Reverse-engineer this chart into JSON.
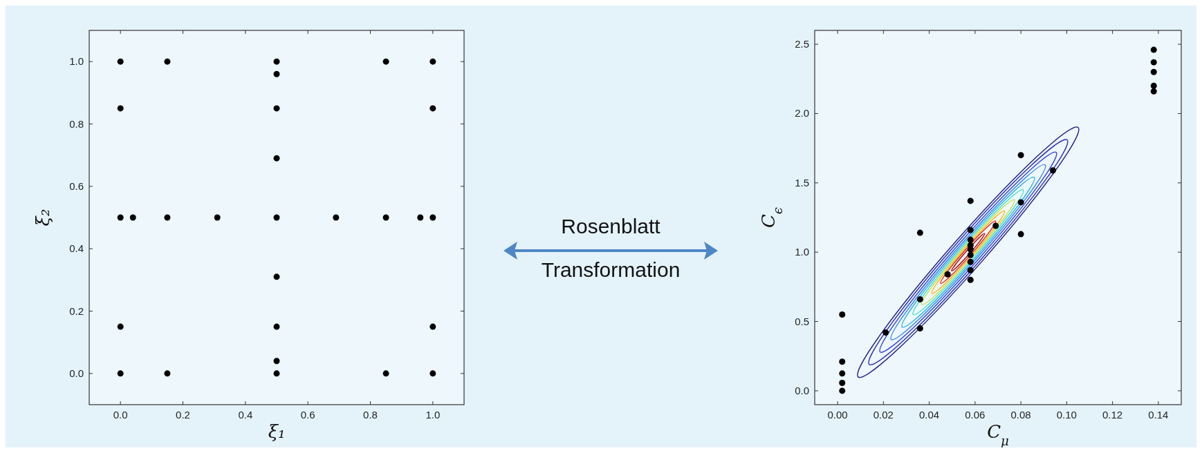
{
  "chart_data": [
    {
      "type": "scatter",
      "xlabel": "ξ₁",
      "ylabel": "ξ₂",
      "marker": "circle",
      "color": "#000000",
      "xlim": [
        -0.1,
        1.1
      ],
      "ylim": [
        -0.1,
        1.1
      ],
      "xticks": [
        {
          "value": 0,
          "label": "0.0"
        },
        {
          "value": 0.2,
          "label": "0.2"
        },
        {
          "value": 0.4,
          "label": "0.4"
        },
        {
          "value": 0.6,
          "label": "0.6"
        },
        {
          "value": 0.8,
          "label": "0.8"
        },
        {
          "value": 1,
          "label": "1.0"
        }
      ],
      "yticks": [
        {
          "value": 0,
          "label": "0.0"
        },
        {
          "value": 0.2,
          "label": "0.2"
        },
        {
          "value": 0.4,
          "label": "0.4"
        },
        {
          "value": 0.6,
          "label": "0.6"
        },
        {
          "value": 0.8,
          "label": "0.8"
        },
        {
          "value": 1,
          "label": "1.0"
        }
      ],
      "x": [
        0,
        0.15,
        0.5,
        0.85,
        1,
        0.5,
        0,
        0.5,
        1,
        0.5,
        0,
        0.04,
        0.15,
        0.31,
        0.5,
        0.69,
        0.85,
        0.96,
        1,
        0.5,
        0,
        0.5,
        1,
        0.5,
        0,
        0.15,
        0.5,
        0.85,
        1
      ],
      "values": [
        1,
        1,
        1,
        1,
        1,
        0.96,
        0.85,
        0.85,
        0.85,
        0.69,
        0.5,
        0.5,
        0.5,
        0.5,
        0.5,
        0.5,
        0.5,
        0.5,
        0.5,
        0.31,
        0.15,
        0.15,
        0.15,
        0.04,
        0,
        0,
        0,
        0,
        0
      ]
    },
    {
      "type": "other",
      "annotations": [
        "Rosenblatt",
        "Transformation"
      ]
    },
    {
      "type": "scatter",
      "xlabel": "C$_{μ}$",
      "ylabel": "C$_{ϵ}$",
      "marker": "circle",
      "color": "#000000",
      "xlim": [
        -0.01,
        0.15
      ],
      "ylim": [
        -0.1,
        2.6
      ],
      "xticks": [
        {
          "value": 0,
          "label": "0.00"
        },
        {
          "value": 0.02,
          "label": "0.02"
        },
        {
          "value": 0.04,
          "label": "0.04"
        },
        {
          "value": 0.06,
          "label": "0.06"
        },
        {
          "value": 0.08,
          "label": "0.08"
        },
        {
          "value": 0.1,
          "label": "0.10"
        },
        {
          "value": 0.12,
          "label": "0.12"
        },
        {
          "value": 0.14,
          "label": "0.14"
        }
      ],
      "yticks": [
        {
          "value": 0,
          "label": "0.0"
        },
        {
          "value": 0.5,
          "label": "0.5"
        },
        {
          "value": 1,
          "label": "1.0"
        },
        {
          "value": 1.5,
          "label": "1.5"
        },
        {
          "value": 2,
          "label": "2.0"
        },
        {
          "value": 2.5,
          "label": "2.5"
        }
      ],
      "x": [
        0.002,
        0.002,
        0.002,
        0.002,
        0.002,
        0.021,
        0.036,
        0.036,
        0.036,
        0.048,
        0.058,
        0.058,
        0.058,
        0.058,
        0.058,
        0.058,
        0.058,
        0.058,
        0.058,
        0.069,
        0.08,
        0.08,
        0.08,
        0.094,
        0.138,
        0.138,
        0.138,
        0.138,
        0.138
      ],
      "values": [
        0.55,
        0.21,
        0.125,
        0.057,
        0,
        0.42,
        1.14,
        0.66,
        0.45,
        0.84,
        1.37,
        1.16,
        1.09,
        1.05,
        1.02,
        0.98,
        0.93,
        0.87,
        0.8,
        1.19,
        1.7,
        1.36,
        1.13,
        1.59,
        2.46,
        2.37,
        2.3,
        2.2,
        2.16
      ]
    }
  ]
}
